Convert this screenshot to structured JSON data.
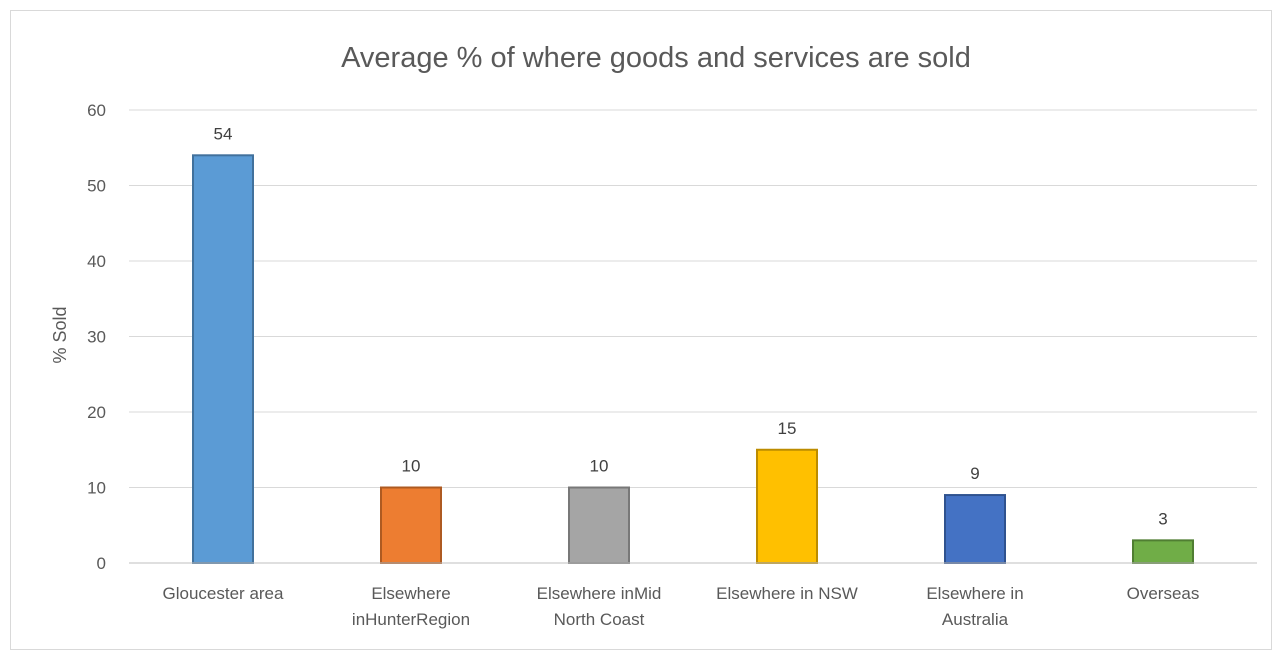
{
  "chart_data": {
    "type": "bar",
    "title": "Average % of where goods and services are sold",
    "xlabel": "",
    "ylabel": "% Sold",
    "ylim": [
      0,
      60
    ],
    "yticks": [
      0,
      10,
      20,
      30,
      40,
      50,
      60
    ],
    "grid": true,
    "categories": [
      [
        "Gloucester area"
      ],
      [
        "Elsewhere",
        "inHunterRegion"
      ],
      [
        "Elsewhere inMid",
        "North Coast"
      ],
      [
        "Elsewhere in NSW"
      ],
      [
        "Elsewhere in",
        "Australia"
      ],
      [
        "Overseas"
      ]
    ],
    "values": [
      54,
      10,
      10,
      15,
      9,
      3
    ],
    "colors": [
      "#5b9bd5",
      "#ed7d31",
      "#a5a5a5",
      "#ffc000",
      "#4472c4",
      "#70ad47"
    ],
    "border_colors": [
      "#41719c",
      "#ae5a21",
      "#787878",
      "#bc8c00",
      "#2f528f",
      "#507e32"
    ]
  }
}
